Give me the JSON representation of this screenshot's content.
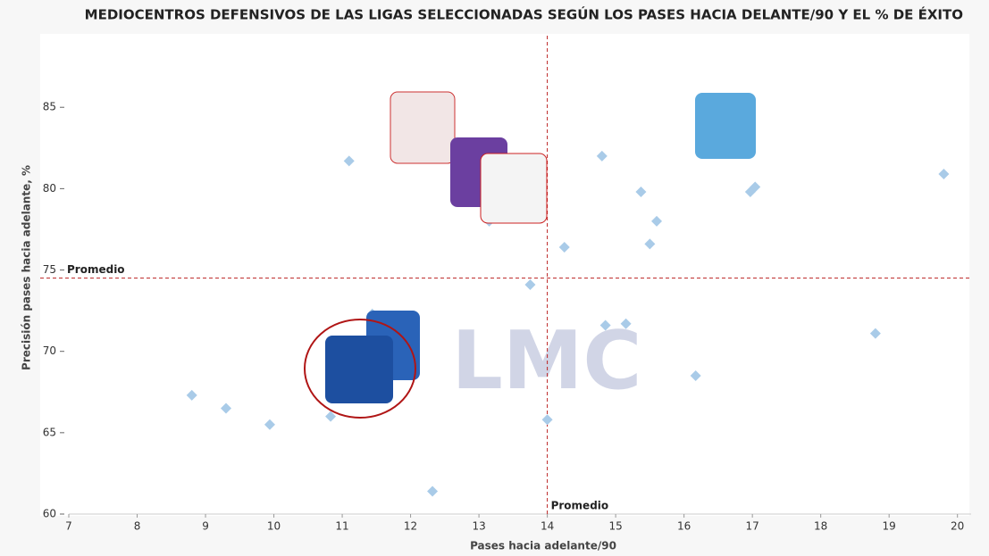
{
  "chart_data": {
    "type": "scatter",
    "title": "MEDIOCENTROS DEFENSIVOS DE LAS LIGAS SELECCIONADAS SEGÚN LOS PASES HACIA DELANTE/90 Y EL % DE ÉXITO",
    "x_label": "Pases hacia adelante/90",
    "y_label": "Precisión pases hacia adelante, %",
    "watermark": "LMC",
    "color": "#a9cbe8",
    "x": [
      8.8,
      9.3,
      9.94,
      10.83,
      11.1,
      12.32,
      13.75,
      14.0,
      14.25,
      14.8,
      14.85,
      15.15,
      15.37,
      15.5,
      15.6,
      16.17,
      16.97,
      17.04,
      18.8,
      19.8,
      11.44,
      16.55,
      13.15
    ],
    "values": [
      67.3,
      66.5,
      65.5,
      66.0,
      81.7,
      61.4,
      74.1,
      65.8,
      76.4,
      82.0,
      71.6,
      71.7,
      79.8,
      76.6,
      78.0,
      68.5,
      79.8,
      80.1,
      71.1,
      80.9,
      72.3,
      84.2,
      78.0
    ],
    "averages": {
      "x": 14.0,
      "y": 74.5,
      "label": "Promedio"
    },
    "xlim": [
      7,
      20.2
    ],
    "ylim": [
      60,
      89.4
    ],
    "xticks": [
      7,
      8,
      9,
      10,
      11,
      12,
      13,
      14,
      15,
      16,
      17,
      18,
      19,
      20
    ],
    "yticks": [
      60,
      65,
      70,
      75,
      80,
      85
    ]
  }
}
